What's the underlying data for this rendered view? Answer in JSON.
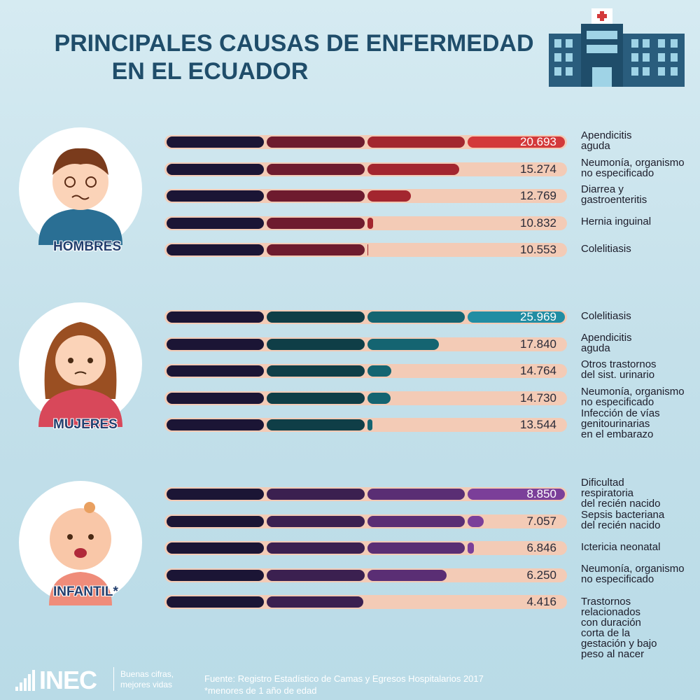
{
  "title": [
    "PRINCIPALES CAUSAS DE ENFERMEDAD",
    "EN EL ECUADOR"
  ],
  "chart_data": [
    {
      "type": "bar",
      "group": "HOMBRES",
      "categories": [
        "Apendicitis\naguda",
        "Neumonía, organismo\nno especificado",
        "Diarrea y\ngastroenteritis",
        "Hernia inguinal",
        "Colelitiasis"
      ],
      "values": [
        20693,
        15274,
        12769,
        10832,
        10553
      ],
      "value_labels": [
        "20.693",
        "15.274",
        "12.769",
        "10.832",
        "10.553"
      ],
      "colors": [
        "#1b1535",
        "#6e1b2e",
        "#a3262f",
        "#d3393a"
      ]
    },
    {
      "type": "bar",
      "group": "MUJERES",
      "categories": [
        "Colelitiasis",
        "Apendicitis\naguda",
        "Otros trastornos\ndel sist. urinario",
        "Neumonía, organismo\nno especificado",
        "Infección de vías\ngenitourinarias\nen el embarazo"
      ],
      "values": [
        25969,
        17840,
        14764,
        14730,
        13544
      ],
      "value_labels": [
        "25.969",
        "17.840",
        "14.764",
        "14.730",
        "13.544"
      ],
      "colors": [
        "#1b1535",
        "#0f3e47",
        "#146471",
        "#218da3"
      ]
    },
    {
      "type": "bar",
      "group": "INFANTIL*",
      "categories": [
        "Dificultad\nrespiratoria\ndel recién nacido",
        "Sepsis bacteriana\ndel recién nacido",
        "Ictericia neonatal",
        "Neumonía, organismo\nno especificado",
        "Trastornos\nrelacionados\ncon duración\ncorta de la\ngestación y bajo\npeso al nacer"
      ],
      "values": [
        8850,
        7057,
        6846,
        6250,
        4416
      ],
      "value_labels": [
        "8.850",
        "7.057",
        "6.846",
        "6.250",
        "4.416"
      ],
      "colors": [
        "#1b1535",
        "#3b2050",
        "#5a2e74",
        "#7b3f99"
      ]
    }
  ],
  "footer": {
    "brand": "INEC",
    "tagline": "Buenas cifras,\nmejores vidas",
    "source": "Fuente: Registro Estadístico de Camas y Egresos Hospitalarios 2017",
    "note": "*menores de 1 año de edad"
  }
}
